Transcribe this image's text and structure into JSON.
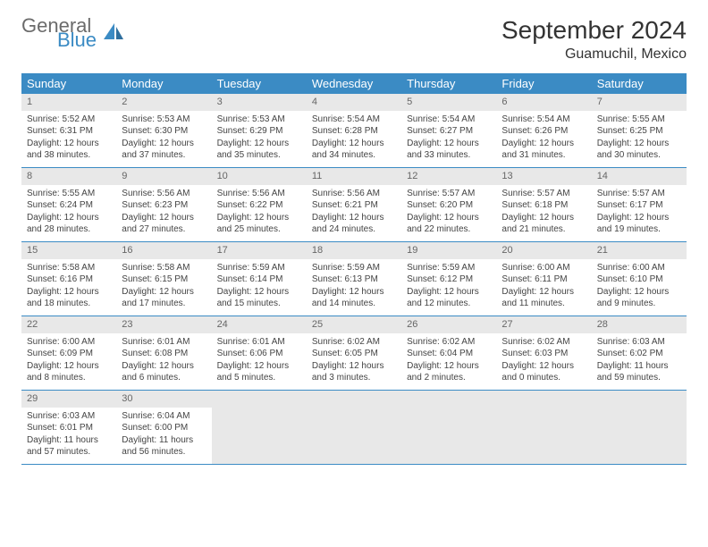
{
  "brand": {
    "part1": "General",
    "part2": "Blue"
  },
  "title": "September 2024",
  "location": "Guamuchil, Mexico",
  "colors": {
    "header_bg": "#3b8bc4",
    "header_text": "#ffffff",
    "daynum_bg": "#e8e8e8",
    "daynum_text": "#666666",
    "body_text": "#444444",
    "rule": "#3b8bc4",
    "logo_gray": "#6b6b6b",
    "logo_blue": "#3b8bc4"
  },
  "weekdays": [
    "Sunday",
    "Monday",
    "Tuesday",
    "Wednesday",
    "Thursday",
    "Friday",
    "Saturday"
  ],
  "days": [
    {
      "n": 1,
      "sr": "5:52 AM",
      "ss": "6:31 PM",
      "dh": 12,
      "dm": 38
    },
    {
      "n": 2,
      "sr": "5:53 AM",
      "ss": "6:30 PM",
      "dh": 12,
      "dm": 37
    },
    {
      "n": 3,
      "sr": "5:53 AM",
      "ss": "6:29 PM",
      "dh": 12,
      "dm": 35
    },
    {
      "n": 4,
      "sr": "5:54 AM",
      "ss": "6:28 PM",
      "dh": 12,
      "dm": 34
    },
    {
      "n": 5,
      "sr": "5:54 AM",
      "ss": "6:27 PM",
      "dh": 12,
      "dm": 33
    },
    {
      "n": 6,
      "sr": "5:54 AM",
      "ss": "6:26 PM",
      "dh": 12,
      "dm": 31
    },
    {
      "n": 7,
      "sr": "5:55 AM",
      "ss": "6:25 PM",
      "dh": 12,
      "dm": 30
    },
    {
      "n": 8,
      "sr": "5:55 AM",
      "ss": "6:24 PM",
      "dh": 12,
      "dm": 28
    },
    {
      "n": 9,
      "sr": "5:56 AM",
      "ss": "6:23 PM",
      "dh": 12,
      "dm": 27
    },
    {
      "n": 10,
      "sr": "5:56 AM",
      "ss": "6:22 PM",
      "dh": 12,
      "dm": 25
    },
    {
      "n": 11,
      "sr": "5:56 AM",
      "ss": "6:21 PM",
      "dh": 12,
      "dm": 24
    },
    {
      "n": 12,
      "sr": "5:57 AM",
      "ss": "6:20 PM",
      "dh": 12,
      "dm": 22
    },
    {
      "n": 13,
      "sr": "5:57 AM",
      "ss": "6:18 PM",
      "dh": 12,
      "dm": 21
    },
    {
      "n": 14,
      "sr": "5:57 AM",
      "ss": "6:17 PM",
      "dh": 12,
      "dm": 19
    },
    {
      "n": 15,
      "sr": "5:58 AM",
      "ss": "6:16 PM",
      "dh": 12,
      "dm": 18
    },
    {
      "n": 16,
      "sr": "5:58 AM",
      "ss": "6:15 PM",
      "dh": 12,
      "dm": 17
    },
    {
      "n": 17,
      "sr": "5:59 AM",
      "ss": "6:14 PM",
      "dh": 12,
      "dm": 15
    },
    {
      "n": 18,
      "sr": "5:59 AM",
      "ss": "6:13 PM",
      "dh": 12,
      "dm": 14
    },
    {
      "n": 19,
      "sr": "5:59 AM",
      "ss": "6:12 PM",
      "dh": 12,
      "dm": 12
    },
    {
      "n": 20,
      "sr": "6:00 AM",
      "ss": "6:11 PM",
      "dh": 12,
      "dm": 11
    },
    {
      "n": 21,
      "sr": "6:00 AM",
      "ss": "6:10 PM",
      "dh": 12,
      "dm": 9
    },
    {
      "n": 22,
      "sr": "6:00 AM",
      "ss": "6:09 PM",
      "dh": 12,
      "dm": 8
    },
    {
      "n": 23,
      "sr": "6:01 AM",
      "ss": "6:08 PM",
      "dh": 12,
      "dm": 6
    },
    {
      "n": 24,
      "sr": "6:01 AM",
      "ss": "6:06 PM",
      "dh": 12,
      "dm": 5
    },
    {
      "n": 25,
      "sr": "6:02 AM",
      "ss": "6:05 PM",
      "dh": 12,
      "dm": 3
    },
    {
      "n": 26,
      "sr": "6:02 AM",
      "ss": "6:04 PM",
      "dh": 12,
      "dm": 2
    },
    {
      "n": 27,
      "sr": "6:02 AM",
      "ss": "6:03 PM",
      "dh": 12,
      "dm": 0
    },
    {
      "n": 28,
      "sr": "6:03 AM",
      "ss": "6:02 PM",
      "dh": 11,
      "dm": 59
    },
    {
      "n": 29,
      "sr": "6:03 AM",
      "ss": "6:01 PM",
      "dh": 11,
      "dm": 57
    },
    {
      "n": 30,
      "sr": "6:04 AM",
      "ss": "6:00 PM",
      "dh": 11,
      "dm": 56
    }
  ],
  "labels": {
    "sunrise": "Sunrise:",
    "sunset": "Sunset:",
    "daylight": "Daylight:",
    "hours": "hours",
    "and": "and",
    "minutes": "minutes."
  },
  "layout": {
    "first_weekday_index": 0,
    "trailing_empty": 5
  }
}
